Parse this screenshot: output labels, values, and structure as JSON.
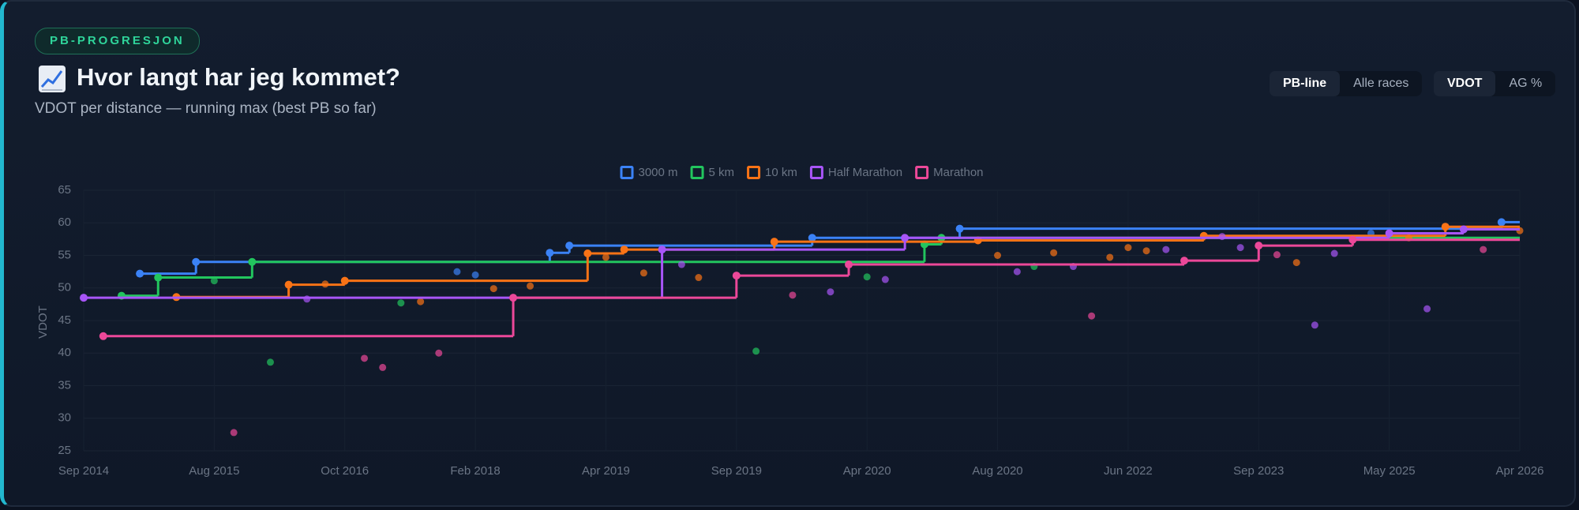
{
  "header": {
    "badge": "PB-PROGRESJON",
    "title": "Hvor langt har jeg kommet?",
    "subtitle": "VDOT per distance — running max (best PB so far)"
  },
  "controls": [
    [
      "PB-line",
      "Alle races"
    ],
    [
      "VDOT",
      "AG %"
    ]
  ],
  "chart_data": {
    "type": "step",
    "ylabel": "VDOT",
    "grid": true,
    "legend": "top",
    "xlim": [
      0,
      11
    ],
    "ylim": [
      25,
      65
    ],
    "xticks": [
      {
        "value": 0,
        "label": "Sep 2014"
      },
      {
        "value": 1,
        "label": "Aug 2015"
      },
      {
        "value": 2,
        "label": "Oct 2016"
      },
      {
        "value": 3,
        "label": "Feb 2018"
      },
      {
        "value": 4,
        "label": "Apr 2019"
      },
      {
        "value": 5,
        "label": "Sep 2019"
      },
      {
        "value": 6,
        "label": "Apr 2020"
      },
      {
        "value": 7,
        "label": "Aug 2020"
      },
      {
        "value": 8,
        "label": "Jun 2022"
      },
      {
        "value": 9,
        "label": "Sep 2023"
      },
      {
        "value": 10,
        "label": "May 2025"
      },
      {
        "value": 11,
        "label": "Apr 2026"
      }
    ],
    "yticks": [
      25,
      30,
      35,
      40,
      45,
      50,
      55,
      60,
      65
    ],
    "series": [
      {
        "name": "3000 m",
        "color": "#3b82f6",
        "x": [
          0.43,
          0.86,
          3.57,
          3.72,
          5.58,
          6.71,
          10.86
        ],
        "values": [
          52.2,
          54.0,
          55.4,
          56.5,
          57.7,
          59.1,
          60.1
        ],
        "races_x": [
          2.86,
          3.0,
          9.86
        ],
        "races_values": [
          52.5,
          52.0,
          58.4
        ]
      },
      {
        "name": "5 km",
        "color": "#22c55e",
        "x": [
          0.29,
          0.57,
          1.29,
          6.44,
          6.57
        ],
        "values": [
          48.8,
          51.6,
          54.0,
          56.7,
          57.7
        ],
        "races_x": [
          1.0,
          1.43,
          2.43,
          5.15,
          6.0,
          7.28
        ],
        "races_values": [
          51.1,
          38.6,
          47.7,
          40.3,
          51.7,
          53.3
        ]
      },
      {
        "name": "10 km",
        "color": "#f97316",
        "x": [
          0.71,
          1.57,
          2.0,
          3.86,
          4.14,
          5.29,
          6.85,
          8.58,
          10.43
        ],
        "values": [
          48.6,
          50.5,
          51.1,
          55.3,
          55.9,
          57.1,
          57.3,
          58.0,
          59.4
        ],
        "races_x": [
          1.85,
          2.58,
          3.14,
          3.42,
          4.0,
          4.29,
          4.71,
          7.0,
          7.43,
          7.86,
          8.0,
          8.14,
          9.29,
          10.15,
          11.0
        ],
        "races_values": [
          50.6,
          47.9,
          49.9,
          50.3,
          54.7,
          52.3,
          51.6,
          55.0,
          55.4,
          54.7,
          56.2,
          55.7,
          53.9,
          57.7,
          58.8
        ]
      },
      {
        "name": "Half Marathon",
        "color": "#a855f7",
        "x": [
          0,
          4.43,
          6.29,
          10.0,
          10.57
        ],
        "values": [
          48.5,
          55.9,
          57.7,
          58.4,
          59.0
        ],
        "races_x": [
          1.71,
          4.58,
          5.72,
          6.14,
          7.15,
          7.58,
          8.29,
          8.72,
          8.86,
          9.58,
          9.43,
          10.29
        ],
        "races_values": [
          48.3,
          53.6,
          49.4,
          51.3,
          52.5,
          53.3,
          55.9,
          57.9,
          56.2,
          55.3,
          44.3,
          46.8
        ]
      },
      {
        "name": "Marathon",
        "color": "#ec4899",
        "x": [
          0.15,
          3.29,
          5.0,
          5.86,
          8.43,
          9.0,
          9.72
        ],
        "values": [
          42.6,
          48.5,
          51.9,
          53.6,
          54.2,
          56.5,
          57.4
        ],
        "races_x": [
          1.15,
          2.15,
          2.29,
          2.72,
          5.43,
          7.72,
          9.14,
          10.72
        ],
        "races_values": [
          27.8,
          39.2,
          37.8,
          40.0,
          48.9,
          45.7,
          55.1,
          55.9
        ]
      }
    ]
  }
}
